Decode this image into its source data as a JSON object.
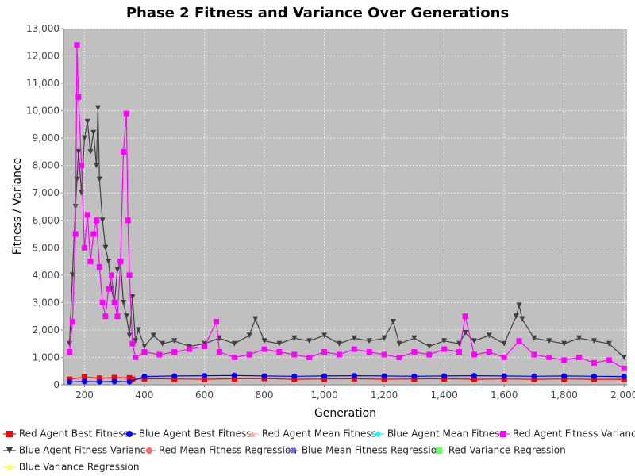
{
  "chart_data": {
    "type": "line",
    "title": "Phase 2 Fitness and Variance Over Generations",
    "xlabel": "Generation",
    "ylabel": "Fitness / Variance",
    "xlim": [
      130,
      2010
    ],
    "ylim": [
      0,
      13000
    ],
    "x_ticks": [
      200,
      400,
      600,
      800,
      1000,
      1200,
      1400,
      1600,
      1800,
      2000
    ],
    "x_tick_labels": [
      "200",
      "400",
      "600",
      "800",
      "1,000",
      "1,200",
      "1,400",
      "1,600",
      "1,800",
      "2,000"
    ],
    "y_ticks": [
      0,
      1000,
      2000,
      3000,
      4000,
      5000,
      6000,
      7000,
      8000,
      9000,
      10000,
      11000,
      12000,
      13000
    ],
    "y_tick_labels": [
      "0",
      "1,000",
      "2,000",
      "3,000",
      "4,000",
      "5,000",
      "6,000",
      "7,000",
      "8,000",
      "9,000",
      "10,000",
      "11,000",
      "12,000",
      "13,000"
    ],
    "grid": true,
    "legend_position": "bottom",
    "series": [
      {
        "name": "Blue Agent Fitness Variance",
        "color": "#404040",
        "marker": "triangle-down",
        "x": [
          150,
          160,
          170,
          175,
          180,
          190,
          200,
          210,
          220,
          230,
          240,
          245,
          250,
          260,
          270,
          280,
          290,
          300,
          310,
          320,
          330,
          340,
          350,
          360,
          370,
          380,
          400,
          430,
          460,
          500,
          550,
          600,
          650,
          700,
          750,
          770,
          800,
          850,
          900,
          950,
          1000,
          1050,
          1100,
          1150,
          1200,
          1230,
          1250,
          1300,
          1350,
          1400,
          1450,
          1470,
          1500,
          1550,
          1600,
          1640,
          1650,
          1660,
          1700,
          1750,
          1800,
          1850,
          1900,
          1950,
          2000
        ],
        "values": [
          1500,
          4000,
          6500,
          7500,
          8500,
          7000,
          9000,
          9600,
          8500,
          9200,
          8000,
          10100,
          7500,
          6000,
          5000,
          4500,
          3500,
          3000,
          4200,
          4500,
          3000,
          2500,
          1800,
          3200,
          1600,
          2000,
          1400,
          1800,
          1500,
          1600,
          1400,
          1500,
          1700,
          1500,
          1800,
          2400,
          1600,
          1500,
          1700,
          1600,
          1800,
          1500,
          1700,
          1600,
          1700,
          2300,
          1500,
          1700,
          1400,
          1600,
          1500,
          1900,
          1600,
          1800,
          1500,
          2500,
          2900,
          2400,
          1700,
          1600,
          1500,
          1700,
          1600,
          1500,
          1000
        ]
      },
      {
        "name": "Red Agent Fitness Variance",
        "color": "#ff00ff",
        "marker": "square",
        "x": [
          150,
          160,
          170,
          175,
          180,
          190,
          200,
          210,
          220,
          230,
          240,
          250,
          260,
          270,
          280,
          290,
          300,
          310,
          320,
          330,
          340,
          345,
          350,
          360,
          370,
          400,
          450,
          500,
          550,
          600,
          640,
          650,
          700,
          750,
          800,
          850,
          900,
          950,
          1000,
          1050,
          1100,
          1150,
          1200,
          1250,
          1300,
          1350,
          1400,
          1450,
          1470,
          1500,
          1550,
          1600,
          1650,
          1700,
          1750,
          1800,
          1850,
          1900,
          1950,
          2000
        ],
        "values": [
          1200,
          2300,
          5500,
          12400,
          10500,
          8000,
          5000,
          6200,
          4500,
          5500,
          6000,
          4300,
          3000,
          2500,
          3500,
          4000,
          3000,
          2500,
          4500,
          8500,
          9900,
          6000,
          4000,
          1500,
          1000,
          1200,
          1100,
          1200,
          1300,
          1400,
          2300,
          1200,
          1000,
          1100,
          1300,
          1200,
          1100,
          1000,
          1200,
          1100,
          1300,
          1200,
          1100,
          1000,
          1200,
          1100,
          1300,
          1200,
          2500,
          1100,
          1200,
          1000,
          1600,
          1100,
          1000,
          900,
          1000,
          800,
          900,
          600
        ]
      },
      {
        "name": "Red Agent Best Fitness",
        "color": "#ff0000",
        "marker": "square",
        "x": [
          150,
          200,
          250,
          300,
          350,
          360,
          400,
          500,
          600,
          700,
          800,
          900,
          1000,
          1100,
          1200,
          1300,
          1400,
          1500,
          1600,
          1700,
          1800,
          1900,
          2000
        ],
        "values": [
          200,
          280,
          240,
          260,
          250,
          200,
          220,
          210,
          200,
          220,
          230,
          200,
          210,
          220,
          200,
          210,
          220,
          200,
          210,
          200,
          210,
          200,
          200
        ]
      },
      {
        "name": "Blue Agent Best Fitness",
        "color": "#0000ff",
        "marker": "circle",
        "x": [
          150,
          200,
          250,
          300,
          350,
          400,
          500,
          600,
          700,
          800,
          900,
          1000,
          1100,
          1200,
          1300,
          1400,
          1500,
          1600,
          1700,
          1800,
          1900,
          2000
        ],
        "values": [
          100,
          120,
          110,
          120,
          110,
          300,
          320,
          330,
          340,
          320,
          310,
          320,
          330,
          320,
          310,
          320,
          330,
          320,
          310,
          320,
          310,
          300
        ]
      },
      {
        "name": "Red Agent Mean Fitness",
        "color": "#ffafaf",
        "marker": "triangle-up",
        "x": [],
        "values": []
      },
      {
        "name": "Blue Agent Mean Fitness",
        "color": "#00ffff",
        "marker": "diamond",
        "x": [],
        "values": []
      },
      {
        "name": "Red Mean Fitness Regression",
        "color": "#ff6a6a",
        "marker": "ellipse",
        "x": [],
        "values": []
      },
      {
        "name": "Blue Mean Fitness Regression",
        "color": "#6a6aff",
        "marker": "triangle-left",
        "x": [],
        "values": []
      },
      {
        "name": "Red Variance Regression",
        "color": "#6aff6a",
        "marker": "square",
        "x": [],
        "values": []
      },
      {
        "name": "Blue Variance Regression",
        "color": "#ffff44",
        "marker": "diamond",
        "x": [],
        "values": []
      }
    ],
    "legend": [
      "Red Agent Best Fitness",
      "Blue Agent Best Fitness",
      "Red Agent Mean Fitness",
      "Blue Agent Mean Fitness",
      "Red Agent Fitness Variance",
      "Blue Agent Fitness Variance",
      "Red Mean Fitness Regression",
      "Blue Mean Fitness Regression",
      "Red Variance Regression",
      "Blue Variance Regression"
    ]
  }
}
